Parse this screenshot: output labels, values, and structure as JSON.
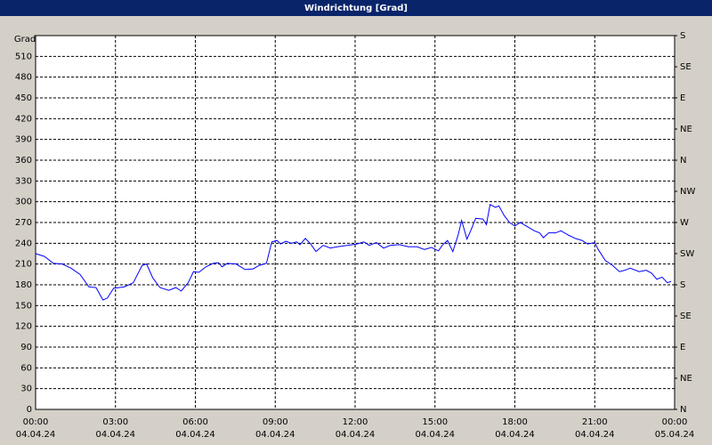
{
  "chart_data": {
    "type": "line",
    "title": "Windrichtung [Grad]",
    "ylabel": "Grad",
    "x": [
      0,
      0.33,
      0.67,
      1.0,
      1.33,
      1.67,
      2.0,
      2.27,
      2.53,
      2.7,
      2.93,
      3.33,
      3.67,
      4.0,
      4.17,
      4.4,
      4.67,
      5.0,
      5.27,
      5.47,
      5.73,
      5.93,
      6.13,
      6.4,
      6.67,
      6.87,
      7.0,
      7.2,
      7.53,
      7.87,
      8.17,
      8.4,
      8.67,
      8.87,
      9.07,
      9.2,
      9.4,
      9.6,
      9.8,
      9.93,
      10.13,
      10.33,
      10.53,
      10.8,
      11.07,
      11.33,
      11.73,
      12.07,
      12.33,
      12.53,
      12.8,
      13.07,
      13.33,
      13.67,
      14.0,
      14.33,
      14.6,
      14.87,
      15.13,
      15.27,
      15.47,
      15.67,
      15.87,
      16.0,
      16.2,
      16.33,
      16.53,
      16.8,
      16.93,
      17.07,
      17.27,
      17.4,
      17.6,
      17.8,
      18.0,
      18.2,
      18.47,
      18.73,
      18.93,
      19.07,
      19.27,
      19.53,
      19.73,
      20.0,
      20.27,
      20.53,
      20.73,
      21.0,
      21.13,
      21.4,
      21.67,
      21.93,
      22.13,
      22.33,
      22.67,
      22.93,
      23.13,
      23.33,
      23.53,
      23.73,
      23.87
    ],
    "series": [
      {
        "name": "Windrichtung",
        "color": "#0000ff",
        "values": [
          225,
          221,
          211,
          210,
          204,
          195,
          177,
          176,
          158,
          161,
          175,
          177,
          183,
          208,
          210,
          190,
          176,
          172,
          176,
          171,
          183,
          199,
          198,
          206,
          211,
          212,
          206,
          211,
          210,
          202,
          203,
          208,
          211,
          242,
          244,
          239,
          243,
          240,
          242,
          238,
          247,
          239,
          228,
          237,
          233,
          235,
          237,
          239,
          242,
          237,
          241,
          233,
          237,
          238,
          235,
          235,
          231,
          234,
          229,
          237,
          244,
          228,
          252,
          273,
          246,
          257,
          276,
          275,
          267,
          296,
          292,
          294,
          280,
          270,
          265,
          270,
          264,
          258,
          255,
          248,
          255,
          255,
          258,
          252,
          247,
          244,
          239,
          241,
          231,
          215,
          208,
          199,
          201,
          204,
          199,
          201,
          197,
          188,
          191,
          183,
          185
        ]
      }
    ],
    "xlim": [
      0,
      24
    ],
    "xticks": [
      {
        "value": 0,
        "label": "00:00"
      },
      {
        "value": 3,
        "label": "03:00"
      },
      {
        "value": 6,
        "label": "06:00"
      },
      {
        "value": 9,
        "label": "09:00"
      },
      {
        "value": 12,
        "label": "12:00"
      },
      {
        "value": 15,
        "label": "15:00"
      },
      {
        "value": 18,
        "label": "18:00"
      },
      {
        "value": 21,
        "label": "21:00"
      },
      {
        "value": 24,
        "label": "00:00"
      }
    ],
    "xtick_dates": [
      "04.04.24",
      "04.04.24",
      "04.04.24",
      "04.04.24",
      "04.04.24",
      "04.04.24",
      "04.04.24",
      "04.04.24",
      "05.04.24"
    ],
    "ylim": [
      0,
      540
    ],
    "yticks": [
      0,
      30,
      60,
      90,
      120,
      150,
      180,
      210,
      240,
      270,
      300,
      330,
      360,
      390,
      420,
      450,
      480,
      510
    ],
    "y2lim": [
      0,
      540
    ],
    "y2ticks": [
      {
        "value": 0,
        "label": "N"
      },
      {
        "value": 45,
        "label": "NE"
      },
      {
        "value": 90,
        "label": "E"
      },
      {
        "value": 135,
        "label": "SE"
      },
      {
        "value": 180,
        "label": "S"
      },
      {
        "value": 225,
        "label": "SW"
      },
      {
        "value": 270,
        "label": "W"
      },
      {
        "value": 315,
        "label": "NW"
      },
      {
        "value": 360,
        "label": "N"
      },
      {
        "value": 405,
        "label": "NE"
      },
      {
        "value": 450,
        "label": "E"
      },
      {
        "value": 495,
        "label": "SE"
      },
      {
        "value": 540,
        "label": "S"
      }
    ],
    "grid": true
  }
}
